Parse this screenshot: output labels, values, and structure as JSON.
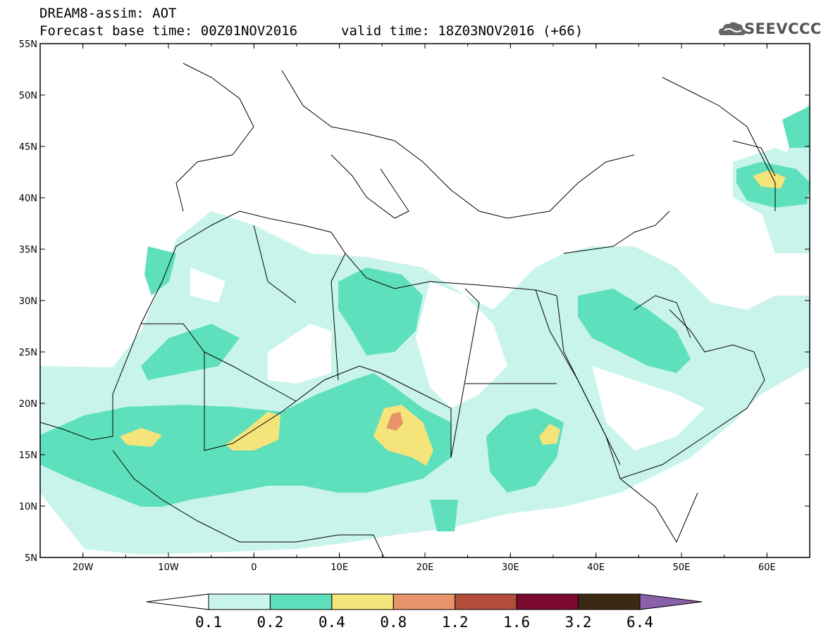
{
  "header": {
    "title": "DREAM8-assim: AOT",
    "base_time": "Forecast base time: 00Z01NOV2016",
    "valid_time": "valid time: 18Z03NOV2016 (+66)",
    "logo_text": "SEEVCCC"
  },
  "map": {
    "lat_range": [
      5,
      55
    ],
    "lon_range": [
      -25,
      65
    ],
    "lat_ticks": [
      "5N",
      "10N",
      "15N",
      "20N",
      "25N",
      "30N",
      "35N",
      "40N",
      "45N",
      "50N",
      "55N"
    ],
    "lon_ticks": [
      "20W",
      "10W",
      "0",
      "10E",
      "20E",
      "30E",
      "40E",
      "50E",
      "60E"
    ]
  },
  "colorbar": {
    "labels": [
      "0.1",
      "0.2",
      "0.4",
      "0.8",
      "1.2",
      "1.6",
      "3.2",
      "6.4"
    ],
    "colors": [
      "#ffffff",
      "#c8f4ec",
      "#5ee0bd",
      "#f4e47a",
      "#e8946a",
      "#b34e3c",
      "#7c0a30",
      "#3a2a14",
      "#8a60a8"
    ]
  }
}
